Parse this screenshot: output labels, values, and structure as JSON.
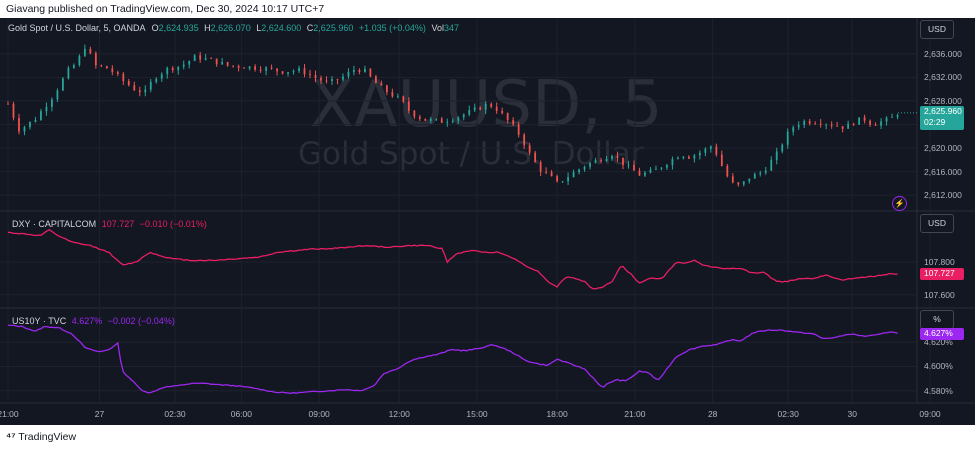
{
  "header": {
    "published_text": "Giavang published on TradingView.com, Dec 30, 2024 10:17 UTC+7"
  },
  "footer": {
    "logo_text": "TradingView"
  },
  "watermark": {
    "symbol": "XAUUSD, 5",
    "description": "Gold Spot / U.S. Dollar"
  },
  "chart_data": [
    {
      "type": "candlestick",
      "legend": {
        "name": "Gold Spot / U.S. Dollar, 5, OANDA",
        "open_label": "O",
        "open": "2,624.935",
        "high_label": "H",
        "high": "2,626.070",
        "low_label": "L",
        "low": "2,624.600",
        "close_label": "C",
        "close": "2,625.960",
        "change": "+1.035 (+0.04%)",
        "volume_label": "Vol",
        "volume": "347"
      },
      "unit": "USD",
      "y_ticks": [
        "2,636.000",
        "2,632.000",
        "2,628.000",
        "2,624.000",
        "2,620.000",
        "2,616.000",
        "2,612.000"
      ],
      "ylim": [
        2610.5,
        2639.7
      ],
      "last_price": "2,625.960",
      "countdown": "02:29",
      "path": [
        [
          0,
          2627.5
        ],
        [
          5,
          2623
        ],
        [
          12,
          2625
        ],
        [
          20,
          2629
        ],
        [
          26,
          2633
        ],
        [
          30,
          2634.5
        ],
        [
          34,
          2637.5
        ],
        [
          38,
          2634
        ],
        [
          44,
          2633.5
        ],
        [
          50,
          2631.5
        ],
        [
          56,
          2629.8
        ],
        [
          60,
          2629.5
        ],
        [
          64,
          2632
        ],
        [
          70,
          2633.5
        ],
        [
          76,
          2634
        ],
        [
          82,
          2635.5
        ],
        [
          88,
          2635
        ],
        [
          96,
          2634
        ],
        [
          104,
          2633.8
        ],
        [
          112,
          2633.5
        ],
        [
          120,
          2633
        ],
        [
          128,
          2633.2
        ],
        [
          134,
          2632
        ],
        [
          140,
          2631
        ],
        [
          146,
          2632
        ],
        [
          152,
          2633.5
        ],
        [
          156,
          2633
        ],
        [
          162,
          2630.5
        ],
        [
          168,
          2629
        ],
        [
          172,
          2628
        ],
        [
          176,
          2626
        ],
        [
          182,
          2624.8
        ],
        [
          190,
          2624.5
        ],
        [
          198,
          2625.5
        ],
        [
          204,
          2626.5
        ],
        [
          210,
          2627.5
        ],
        [
          214,
          2626.5
        ],
        [
          220,
          2624
        ],
        [
          224,
          2622
        ],
        [
          228,
          2619
        ],
        [
          232,
          2616.5
        ],
        [
          236,
          2615.5
        ],
        [
          240,
          2614
        ],
        [
          246,
          2615.5
        ],
        [
          252,
          2617
        ],
        [
          258,
          2618
        ],
        [
          264,
          2619
        ],
        [
          270,
          2617
        ],
        [
          276,
          2615.5
        ],
        [
          282,
          2616
        ],
        [
          288,
          2617.5
        ],
        [
          294,
          2619
        ],
        [
          298,
          2618.5
        ],
        [
          304,
          2619.5
        ],
        [
          308,
          2620.5
        ],
        [
          312,
          2617
        ],
        [
          316,
          2614
        ],
        [
          320,
          2613.5
        ],
        [
          324,
          2615
        ],
        [
          330,
          2616
        ],
        [
          336,
          2619
        ],
        [
          340,
          2622
        ],
        [
          344,
          2624
        ],
        [
          348,
          2624.5
        ],
        [
          354,
          2624.5
        ],
        [
          360,
          2624
        ],
        [
          366,
          2623.5
        ],
        [
          370,
          2624.5
        ],
        [
          374,
          2625
        ],
        [
          378,
          2624
        ],
        [
          382,
          2624.5
        ],
        [
          386,
          2625
        ],
        [
          389,
          2625.96
        ]
      ]
    },
    {
      "type": "line",
      "legend": {
        "name": "DXY · CAPITALCOM",
        "value": "107.727",
        "change": "−0.010 (−0.01%)"
      },
      "unit": "USD",
      "y_ticks": [
        "107.800",
        "107.600"
      ],
      "ylim": [
        107.55,
        108.05
      ],
      "last_value": "107.727",
      "color": "#e91e63",
      "series": [
        {
          "name": "DXY · CAPITALCOM",
          "points": [
            [
              0,
              107.98
            ],
            [
              8,
              107.97
            ],
            [
              14,
              107.96
            ],
            [
              18,
              107.995
            ],
            [
              22,
              107.96
            ],
            [
              28,
              107.92
            ],
            [
              36,
              107.9
            ],
            [
              44,
              107.86
            ],
            [
              50,
              107.78
            ],
            [
              56,
              107.8
            ],
            [
              62,
              107.86
            ],
            [
              66,
              107.84
            ],
            [
              72,
              107.82
            ],
            [
              80,
              107.81
            ],
            [
              90,
              107.81
            ],
            [
              100,
              107.82
            ],
            [
              110,
              107.83
            ],
            [
              118,
              107.86
            ],
            [
              126,
              107.87
            ],
            [
              134,
              107.88
            ],
            [
              140,
              107.88
            ],
            [
              148,
              107.89
            ],
            [
              156,
              107.9
            ],
            [
              166,
              107.89
            ],
            [
              176,
              107.9
            ],
            [
              184,
              107.9
            ],
            [
              190,
              107.88
            ],
            [
              192,
              107.8
            ],
            [
              196,
              107.85
            ],
            [
              202,
              107.87
            ],
            [
              208,
              107.86
            ],
            [
              214,
              107.86
            ],
            [
              220,
              107.83
            ],
            [
              226,
              107.78
            ],
            [
              232,
              107.74
            ],
            [
              236,
              107.68
            ],
            [
              240,
              107.65
            ],
            [
              244,
              107.71
            ],
            [
              248,
              107.7
            ],
            [
              252,
              107.68
            ],
            [
              256,
              107.63
            ],
            [
              260,
              107.65
            ],
            [
              264,
              107.68
            ],
            [
              268,
              107.78
            ],
            [
              272,
              107.73
            ],
            [
              276,
              107.67
            ],
            [
              280,
              107.7
            ],
            [
              286,
              107.7
            ],
            [
              292,
              107.8
            ],
            [
              296,
              107.79
            ],
            [
              300,
              107.81
            ],
            [
              304,
              107.78
            ],
            [
              308,
              107.77
            ],
            [
              314,
              107.76
            ],
            [
              320,
              107.76
            ],
            [
              326,
              107.73
            ],
            [
              330,
              107.74
            ],
            [
              336,
              107.68
            ],
            [
              340,
              107.68
            ],
            [
              346,
              107.7
            ],
            [
              352,
              107.7
            ],
            [
              358,
              107.72
            ],
            [
              364,
              107.69
            ],
            [
              370,
              107.7
            ],
            [
              376,
              107.71
            ],
            [
              382,
              107.72
            ],
            [
              386,
              107.73
            ],
            [
              389,
              107.727
            ]
          ]
        }
      ]
    },
    {
      "type": "line",
      "legend": {
        "name": "US10Y · TVC",
        "value": "4.627%",
        "change": "−0.002 (−0.04%)"
      },
      "unit": "%",
      "y_ticks": [
        "4.620%",
        "4.600%",
        "4.580%"
      ],
      "ylim": [
        4.574,
        4.64
      ],
      "last_value": "4.627%",
      "color": "#9c27f0",
      "series": [
        {
          "name": "US10Y · TVC",
          "points": [
            [
              0,
              4.634
            ],
            [
              6,
              4.633
            ],
            [
              12,
              4.629
            ],
            [
              16,
              4.633
            ],
            [
              22,
              4.632
            ],
            [
              28,
              4.627
            ],
            [
              34,
              4.615
            ],
            [
              40,
              4.612
            ],
            [
              44,
              4.614
            ],
            [
              48,
              4.619
            ],
            [
              50,
              4.596
            ],
            [
              54,
              4.589
            ],
            [
              58,
              4.581
            ],
            [
              62,
              4.578
            ],
            [
              68,
              4.583
            ],
            [
              74,
              4.584
            ],
            [
              80,
              4.586
            ],
            [
              86,
              4.586
            ],
            [
              92,
              4.585
            ],
            [
              100,
              4.584
            ],
            [
              108,
              4.582
            ],
            [
              116,
              4.579
            ],
            [
              124,
              4.578
            ],
            [
              132,
              4.579
            ],
            [
              140,
              4.58
            ],
            [
              148,
              4.581
            ],
            [
              154,
              4.58
            ],
            [
              160,
              4.584
            ],
            [
              164,
              4.594
            ],
            [
              170,
              4.598
            ],
            [
              176,
              4.605
            ],
            [
              182,
              4.608
            ],
            [
              188,
              4.61
            ],
            [
              194,
              4.614
            ],
            [
              200,
              4.613
            ],
            [
              206,
              4.615
            ],
            [
              212,
              4.618
            ],
            [
              218,
              4.614
            ],
            [
              222,
              4.61
            ],
            [
              226,
              4.605
            ],
            [
              232,
              4.602
            ],
            [
              236,
              4.601
            ],
            [
              240,
              4.606
            ],
            [
              246,
              4.602
            ],
            [
              252,
              4.598
            ],
            [
              256,
              4.59
            ],
            [
              260,
              4.582
            ],
            [
              262,
              4.586
            ],
            [
              266,
              4.589
            ],
            [
              270,
              4.588
            ],
            [
              276,
              4.596
            ],
            [
              280,
              4.595
            ],
            [
              284,
              4.588
            ],
            [
              288,
              4.598
            ],
            [
              292,
              4.608
            ],
            [
              298,
              4.614
            ],
            [
              304,
              4.617
            ],
            [
              310,
              4.618
            ],
            [
              316,
              4.622
            ],
            [
              320,
              4.621
            ],
            [
              326,
              4.628
            ],
            [
              332,
              4.63
            ],
            [
              338,
              4.63
            ],
            [
              346,
              4.628
            ],
            [
              352,
              4.627
            ],
            [
              356,
              4.623
            ],
            [
              362,
              4.624
            ],
            [
              368,
              4.627
            ],
            [
              374,
              4.625
            ],
            [
              380,
              4.626
            ],
            [
              386,
              4.629
            ],
            [
              389,
              4.627
            ]
          ]
        }
      ]
    }
  ],
  "x_axis": {
    "ticks": [
      {
        "label": "21:00",
        "x": 0
      },
      {
        "label": "27",
        "x": 40
      },
      {
        "label": "02:30",
        "x": 73
      },
      {
        "label": "06:00",
        "x": 102
      },
      {
        "label": "09:00",
        "x": 136
      },
      {
        "label": "12:00",
        "x": 171
      },
      {
        "label": "15:00",
        "x": 205
      },
      {
        "label": "18:00",
        "x": 240
      },
      {
        "label": "21:00",
        "x": 274
      },
      {
        "label": "28",
        "x": 308
      },
      {
        "label": "02:30",
        "x": 341
      },
      {
        "label": "30",
        "x": 369
      },
      {
        "label": "09:00",
        "x": 403
      }
    ]
  },
  "colors": {
    "background": "#131722",
    "up": "#26a69a",
    "down": "#ef5350",
    "grid": "#1e222d",
    "axis_text": "#b2b5be"
  }
}
